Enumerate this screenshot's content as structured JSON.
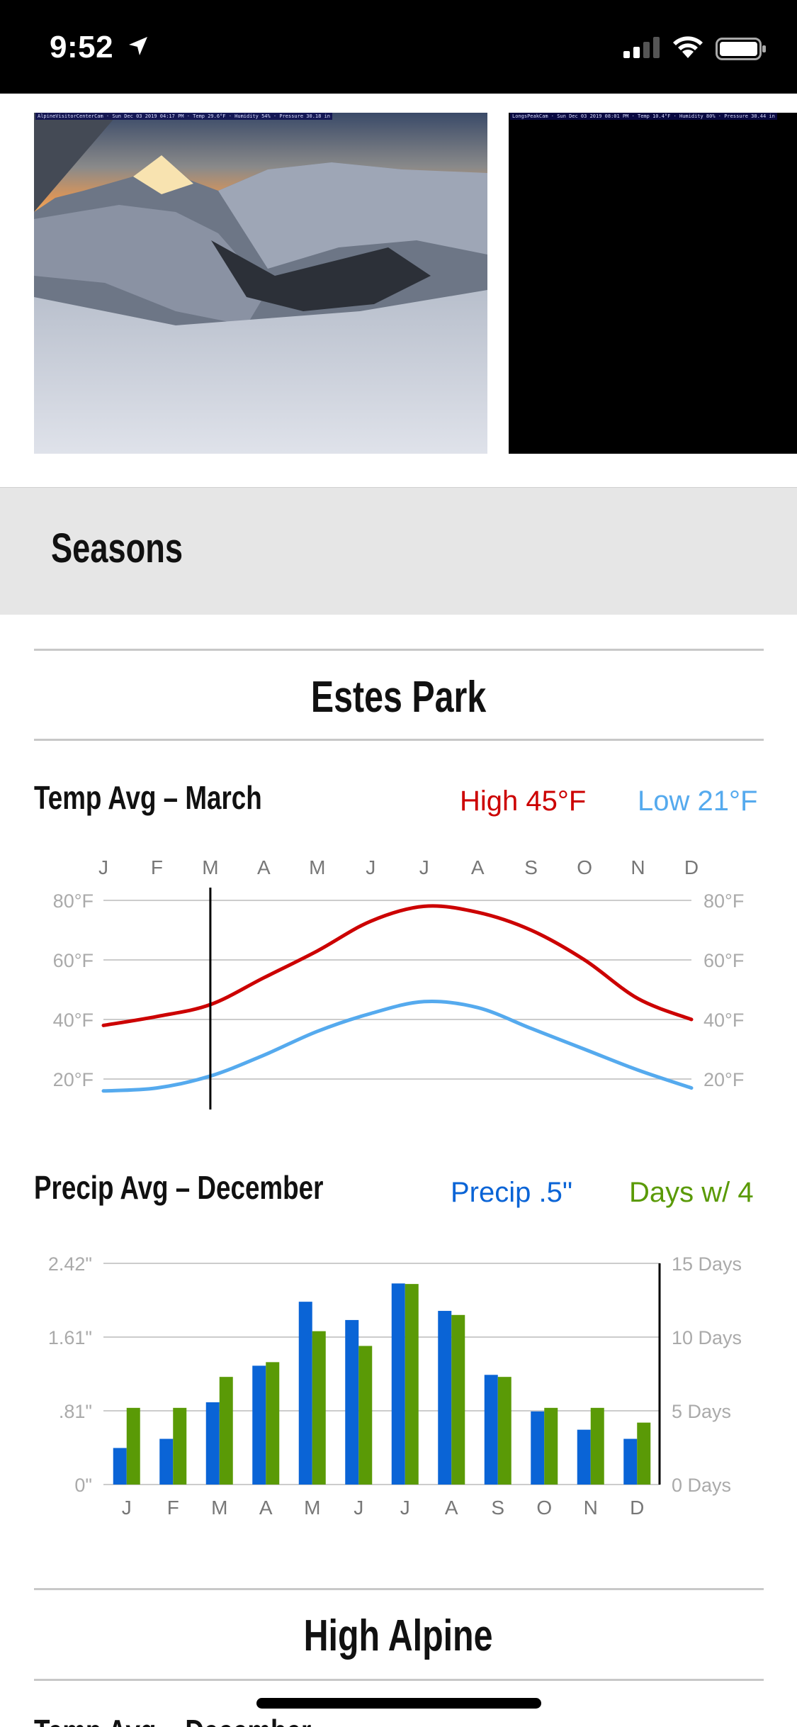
{
  "status_bar": {
    "time": "9:52",
    "icons": [
      "location-arrow-icon",
      "cellular-signal-icon",
      "wifi-icon",
      "battery-icon"
    ]
  },
  "webcams": [
    {
      "caption": "AlpineVisitorCenterCam · Sun Dec 03 2019 04:17 PM · Temp 29.6°F · Humidity 54% · Pressure 30.18 in"
    },
    {
      "caption": "LongsPeakCam · Sun Dec 03 2019 08:01 PM · Temp 10.4°F · Humidity 80% · Pressure 30.44 in"
    }
  ],
  "section": {
    "title": "Seasons"
  },
  "locations": [
    {
      "name": "Estes Park",
      "temp": {
        "heading": "Temp Avg – March",
        "high_label": "High 45°F",
        "low_label": "Low 21°F"
      },
      "precip": {
        "heading": "Precip Avg – December",
        "precip_label": "Precip .5\"",
        "days_label": "Days w/ 4"
      }
    },
    {
      "name": "High Alpine",
      "temp": {
        "heading": "Temp Avg – December"
      }
    }
  ],
  "colors": {
    "high": "#cc0000",
    "low": "#55aaee",
    "precip": "#0a64d6",
    "days": "#5a9a06",
    "grid": "#cccccc",
    "axis_text": "#aaaaaa"
  },
  "chart_data": [
    {
      "type": "line",
      "title": "Temp Avg – March",
      "x": [
        "J",
        "F",
        "M",
        "A",
        "M",
        "J",
        "J",
        "A",
        "S",
        "O",
        "N",
        "D"
      ],
      "series": [
        {
          "name": "High",
          "values": [
            38,
            41,
            45,
            54,
            63,
            73,
            78,
            76,
            70,
            60,
            47,
            40
          ]
        },
        {
          "name": "Low",
          "values": [
            16,
            17,
            21,
            28,
            36,
            42,
            46,
            44,
            37,
            30,
            23,
            17
          ]
        }
      ],
      "y_ticks": [
        "20°F",
        "40°F",
        "60°F",
        "80°F"
      ],
      "ylim": [
        15,
        80
      ],
      "highlight_index": 2,
      "grid": true
    },
    {
      "type": "bar",
      "title": "Precip Avg – December",
      "categories": [
        "J",
        "F",
        "M",
        "A",
        "M",
        "J",
        "J",
        "A",
        "S",
        "O",
        "N",
        "D"
      ],
      "series": [
        {
          "name": "Precip",
          "values": [
            0.4,
            0.5,
            0.9,
            1.3,
            2.0,
            1.8,
            2.2,
            1.9,
            1.2,
            0.8,
            0.6,
            0.5
          ]
        },
        {
          "name": "Days w/",
          "values": [
            5.2,
            5.2,
            7.3,
            8.3,
            10.4,
            9.4,
            13.6,
            11.5,
            7.3,
            5.2,
            5.2,
            4.2
          ]
        }
      ],
      "y_ticks_left": [
        "0\"",
        ".81\"",
        "1.61\"",
        "2.42\""
      ],
      "y_ticks_right": [
        "0 Days",
        "5 Days",
        "10 Days",
        "15 Days"
      ],
      "ylim_left": [
        0,
        2.42
      ],
      "ylim_right": [
        0,
        15
      ],
      "highlight_index": 11,
      "grid": true
    }
  ]
}
